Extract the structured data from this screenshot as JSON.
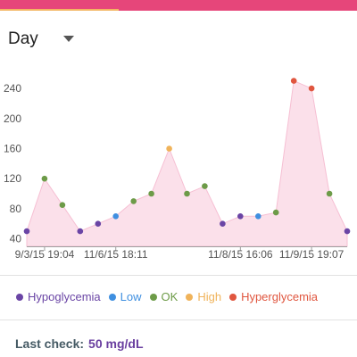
{
  "range_selector": {
    "value": "Day",
    "icon": "chevron-down-icon"
  },
  "colors": {
    "topbar": "#e6467a",
    "topbar_accent": "#f3b562",
    "area_fill": "#fbe0ea",
    "area_line": "#f6bfd3",
    "Hypoglycemia": "#6a45a5",
    "Low": "#3f8fe0",
    "OK": "#6d9b48",
    "High": "#f0b35a",
    "Hyperglycemia": "#e0563f"
  },
  "chart_data": {
    "type": "area",
    "x_tick_labels": [
      "9/3/15 19:04",
      "11/6/15 18:11",
      "11/8/15 16:06",
      "11/9/15 19:07"
    ],
    "y_ticks": [
      40,
      80,
      120,
      160,
      200,
      240
    ],
    "ylim": [
      30,
      265
    ],
    "grid": false,
    "legend_position": "bottom",
    "points": [
      {
        "y": 50,
        "status": "Hypoglycemia"
      },
      {
        "y": 120,
        "status": "OK"
      },
      {
        "y": 85,
        "status": "OK"
      },
      {
        "y": 50,
        "status": "Hypoglycemia"
      },
      {
        "y": 60,
        "status": "Hypoglycemia"
      },
      {
        "y": 70,
        "status": "Low"
      },
      {
        "y": 90,
        "status": "OK"
      },
      {
        "y": 100,
        "status": "OK"
      },
      {
        "y": 160,
        "status": "High"
      },
      {
        "y": 100,
        "status": "OK"
      },
      {
        "y": 110,
        "status": "OK"
      },
      {
        "y": 60,
        "status": "Hypoglycemia"
      },
      {
        "y": 70,
        "status": "Hypoglycemia"
      },
      {
        "y": 70,
        "status": "Low"
      },
      {
        "y": 75,
        "status": "OK"
      },
      {
        "y": 250,
        "status": "Hyperglycemia"
      },
      {
        "y": 240,
        "status": "Hyperglycemia"
      },
      {
        "y": 100,
        "status": "OK"
      },
      {
        "y": 50,
        "status": "Hypoglycemia"
      }
    ]
  },
  "legend": [
    {
      "label": "Hypoglycemia",
      "key": "Hypoglycemia"
    },
    {
      "label": "Low",
      "key": "Low"
    },
    {
      "label": "OK",
      "key": "OK"
    },
    {
      "label": "High",
      "key": "High"
    },
    {
      "label": "Hyperglycemia",
      "key": "Hyperglycemia"
    }
  ],
  "last_check": {
    "label": "Last check:",
    "value": "50 mg/dL"
  }
}
